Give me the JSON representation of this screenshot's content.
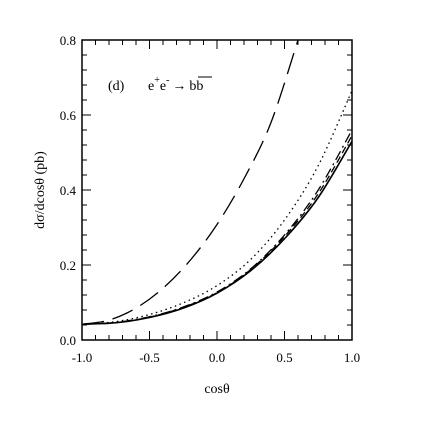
{
  "chart_data": {
    "type": "line",
    "panel_label": "(d)",
    "process_label": {
      "initial": "e",
      "plus": "+",
      "minus": "-",
      "arrow": "→",
      "final": "bb"
    },
    "xlabel": "cosθ",
    "ylabel": "dσ/dcosθ  (pb)",
    "xlim": [
      -1.0,
      1.0
    ],
    "ylim": [
      0.0,
      0.8
    ],
    "x_ticks": [
      "-1.0",
      "-0.5",
      "0.0",
      "0.5",
      "1.0"
    ],
    "y_ticks": [
      "0.0",
      "0.2",
      "0.4",
      "0.6",
      "0.8"
    ],
    "grid": false,
    "series": [
      {
        "style": "solid",
        "x": [
          -1.0,
          -0.75,
          -0.5,
          -0.25,
          0.0,
          0.25,
          0.5,
          0.75,
          1.0
        ],
        "y": [
          0.042,
          0.046,
          0.06,
          0.085,
          0.125,
          0.185,
          0.27,
          0.38,
          0.53
        ]
      },
      {
        "style": "dashdot",
        "x": [
          -1.0,
          -0.75,
          -0.5,
          -0.25,
          0.0,
          0.25,
          0.5,
          0.75,
          1.0
        ],
        "y": [
          0.042,
          0.047,
          0.062,
          0.088,
          0.128,
          0.19,
          0.28,
          0.4,
          0.56
        ]
      },
      {
        "style": "shortdash",
        "x": [
          -1.0,
          -0.75,
          -0.5,
          -0.25,
          0.0,
          0.25,
          0.5,
          0.75,
          1.0
        ],
        "y": [
          0.042,
          0.046,
          0.061,
          0.087,
          0.126,
          0.188,
          0.276,
          0.39,
          0.545
        ]
      },
      {
        "style": "dotted",
        "x": [
          -1.0,
          -0.75,
          -0.5,
          -0.25,
          0.0,
          0.25,
          0.5,
          0.75,
          1.0
        ],
        "y": [
          0.042,
          0.049,
          0.068,
          0.099,
          0.145,
          0.215,
          0.32,
          0.465,
          0.665
        ]
      },
      {
        "style": "longdash",
        "x": [
          -1.0,
          -0.8,
          -0.6,
          -0.4,
          -0.2,
          0.0,
          0.2,
          0.4,
          0.6
        ],
        "y": [
          0.042,
          0.053,
          0.085,
          0.138,
          0.212,
          0.308,
          0.43,
          0.58,
          0.8
        ]
      }
    ]
  }
}
